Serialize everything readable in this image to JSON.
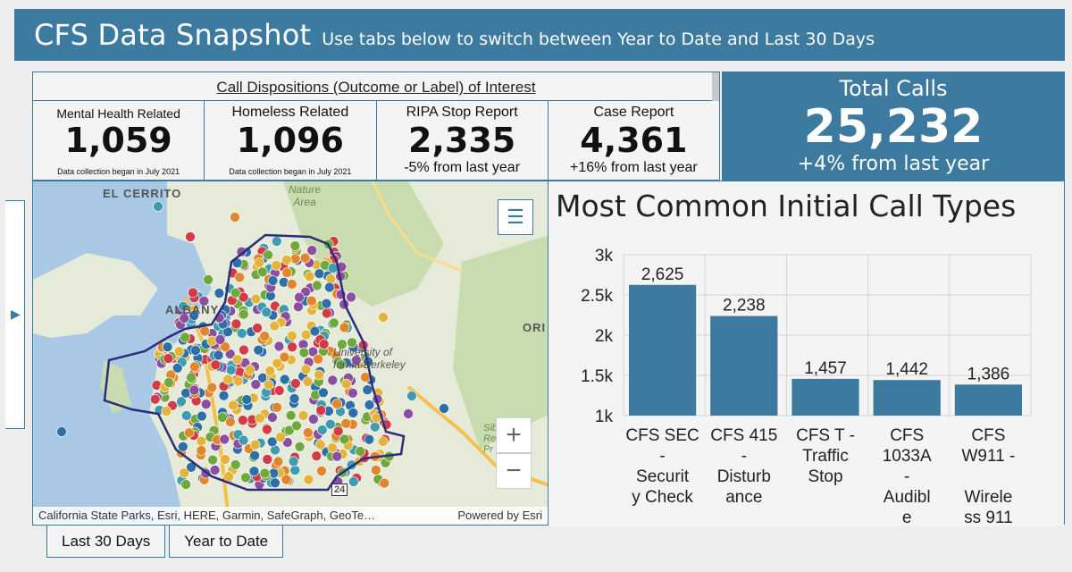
{
  "header": {
    "title": "CFS Data Snapshot",
    "subtitle": "Use tabs below to switch between Year to Date and Last 30 Days"
  },
  "dispositions": {
    "heading": "Call Dispositions (Outcome or Label) of Interest",
    "metrics": [
      {
        "label": "Mental Health Related",
        "value": "1,059",
        "note": "Data collection began in July 2021"
      },
      {
        "label": "Homeless Related",
        "value": "1,096",
        "note": "Data collection began in July 2021"
      },
      {
        "label": "RIPA Stop Report",
        "value": "2,335",
        "change": "-5% from last year"
      },
      {
        "label": "Case Report",
        "value": "4,361",
        "change": "+16% from last year"
      }
    ]
  },
  "total": {
    "label": "Total Calls",
    "value": "25,232",
    "change": "+4% from last year"
  },
  "side_toggle": {
    "icon": "chevron-right-icon",
    "glyph": "▶"
  },
  "map": {
    "labels": {
      "el_cerrito": "EL CERRITO",
      "albany": "ALBANY",
      "nature_area": "Nature\nArea",
      "university": "University of\nfornia-Berkeley",
      "ori": "ORI",
      "sibley": "Sible\nRe\nPr",
      "route": "24"
    },
    "legend_icon": "list-icon",
    "zoom_in": "+",
    "zoom_out": "−",
    "attribution": "California State Parks, Esri, HERE, Garmin, SafeGraph, GeoTe…",
    "powered_by": "Powered by Esri",
    "dot_colors": [
      "#2f6fa8",
      "#3f9bb0",
      "#d13c46",
      "#e0862c",
      "#6fa83c",
      "#e4b43a",
      "#8a4fa0"
    ]
  },
  "chart_data": {
    "type": "bar",
    "title": "Most Common Initial Call Types",
    "categories": [
      [
        "CFS SEC",
        "-",
        "Securit",
        "y Check"
      ],
      [
        "CFS 415",
        "-",
        "Disturb",
        "ance"
      ],
      [
        "CFS T -",
        "Traffic",
        "Stop"
      ],
      [
        "CFS",
        "1033A",
        "-",
        "Audibl",
        "e"
      ],
      [
        "CFS",
        "W911 -",
        "",
        "Wirele",
        "ss 911"
      ]
    ],
    "values": [
      2625,
      2238,
      1457,
      1442,
      1386
    ],
    "value_labels": [
      "2,625",
      "2,238",
      "1,457",
      "1,442",
      "1,386"
    ],
    "yticks": [
      1000,
      1500,
      2000,
      2500,
      3000
    ],
    "ytick_labels": [
      "1k",
      "1.5k",
      "2k",
      "2.5k",
      "3k"
    ],
    "ylim": [
      1000,
      3000
    ],
    "bar_color": "#3d7aa0",
    "grid": true
  },
  "tabs": [
    {
      "label": "Last 30 Days"
    },
    {
      "label": "Year to Date"
    }
  ]
}
